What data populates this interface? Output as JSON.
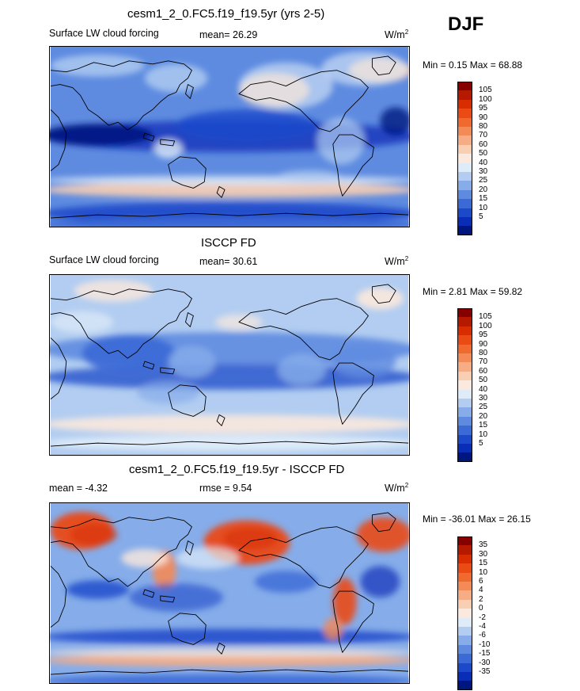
{
  "season": "DJF",
  "panels": [
    {
      "title": "cesm1_2_0.FC5.f19_f19.5yr (yrs 2-5)",
      "left_label": "Surface LW cloud forcing",
      "center_label": "mean=  26.29",
      "units": "W/m",
      "units_sup": "2",
      "minmax": "Min =   0.15 Max =  68.88",
      "colorbar": {
        "labels": [
          "105",
          "100",
          "95",
          "90",
          "80",
          "70",
          "60",
          "50",
          "40",
          "30",
          "25",
          "20",
          "15",
          "10",
          "5"
        ],
        "colors": [
          "#870000",
          "#b51a00",
          "#d72d00",
          "#ea4a14",
          "#f0692f",
          "#f48a55",
          "#f6ac84",
          "#f9cfb4",
          "#fbe9dd",
          "#deebf8",
          "#b2cdf1",
          "#86adea",
          "#5e8be0",
          "#3b69d6",
          "#1c49ca",
          "#0a2db8",
          "#00167f"
        ]
      },
      "style": "model"
    },
    {
      "title": "ISCCP FD",
      "left_label": "Surface LW cloud forcing",
      "center_label": "mean=  30.61",
      "units": "W/m",
      "units_sup": "2",
      "minmax": "Min =   2.81 Max =  59.82",
      "colorbar": {
        "labels": [
          "105",
          "100",
          "95",
          "90",
          "80",
          "70",
          "60",
          "50",
          "40",
          "30",
          "25",
          "20",
          "15",
          "10",
          "5"
        ],
        "colors": [
          "#870000",
          "#b51a00",
          "#d72d00",
          "#ea4a14",
          "#f0692f",
          "#f48a55",
          "#f6ac84",
          "#f9cfb4",
          "#fbe9dd",
          "#deebf8",
          "#b2cdf1",
          "#86adea",
          "#5e8be0",
          "#3b69d6",
          "#1c49ca",
          "#0a2db8",
          "#00167f"
        ]
      },
      "style": "obs"
    },
    {
      "title": "cesm1_2_0.FC5.f19_f19.5yr - ISCCP FD",
      "left_label": "mean =  -4.32",
      "center_label": "rmse =   9.54",
      "units": "W/m",
      "units_sup": "2",
      "minmax": "Min = -36.01 Max =  26.15",
      "colorbar": {
        "labels": [
          "35",
          "30",
          "15",
          "10",
          "6",
          "4",
          "2",
          "0",
          "-2",
          "-4",
          "-6",
          "-10",
          "-15",
          "-30",
          "-35"
        ],
        "colors": [
          "#870000",
          "#b51a00",
          "#d72d00",
          "#ea4a14",
          "#f0692f",
          "#f48a55",
          "#f6ac84",
          "#f9cfb4",
          "#fbe9dd",
          "#deebf8",
          "#b2cdf1",
          "#86adea",
          "#5e8be0",
          "#3b69d6",
          "#1c49ca",
          "#0a2db8",
          "#00167f"
        ]
      },
      "style": "diff"
    }
  ]
}
